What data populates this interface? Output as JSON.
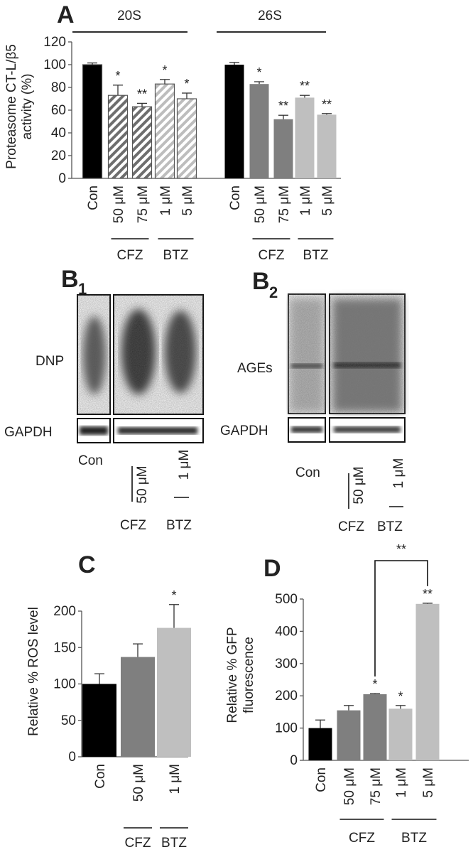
{
  "panels": {
    "a": {
      "letter": "A",
      "group1": "20S",
      "group2": "26S",
      "ylabel_line1": "Proteasome CT-L/β5",
      "ylabel_line2": "activity (%)"
    },
    "b1": {
      "letter": "B",
      "sub": "1",
      "band1": "DNP",
      "band2": "GAPDH",
      "lanes": [
        "Con",
        "50 μM",
        "1 μM"
      ],
      "groups": [
        "CFZ",
        "BTZ"
      ]
    },
    "b2": {
      "letter": "B",
      "sub": "2",
      "band1": "AGEs",
      "band2": "GAPDH",
      "lanes": [
        "Con",
        "50 μM",
        "1 μM"
      ],
      "groups": [
        "CFZ",
        "BTZ"
      ]
    },
    "c": {
      "letter": "C",
      "ylabel": "Relative % ROS level"
    },
    "d": {
      "letter": "D",
      "ylabel_line1": "Relative % GFP",
      "ylabel_line2": "fluorescence",
      "bracket_sig": "**"
    }
  },
  "colors": {
    "con": "#000000",
    "cfz": "#7f7f7f",
    "btz": "#bfbfbf",
    "hatch_cfz": "#6e6e6e",
    "hatch_btz": "#bdbdbd"
  },
  "chart_data": [
    {
      "id": "A-20S",
      "type": "bar",
      "categories": [
        "Con",
        "50 μM",
        "75 μM",
        "1 μM",
        "5 μM"
      ],
      "values": [
        100,
        73,
        63,
        83,
        70
      ],
      "errors": [
        1.5,
        9,
        3,
        4,
        5
      ],
      "significance": [
        "",
        "*",
        "**",
        "*",
        "*"
      ],
      "fills": [
        "solid-black",
        "hatch-dark",
        "hatch-dark",
        "hatch-light",
        "hatch-light"
      ],
      "groups": [
        {
          "label": "CFZ",
          "from": 1,
          "to": 2
        },
        {
          "label": "BTZ",
          "from": 3,
          "to": 4
        }
      ],
      "ylim": [
        0,
        120
      ],
      "yticks": [
        0,
        20,
        40,
        60,
        80,
        100,
        120
      ]
    },
    {
      "id": "A-26S",
      "type": "bar",
      "categories": [
        "Con",
        "50 μM",
        "75 μM",
        "1 μM",
        "5 μM"
      ],
      "values": [
        100,
        83,
        52,
        71,
        56
      ],
      "errors": [
        2,
        2,
        3.5,
        2,
        1
      ],
      "significance": [
        "",
        "*",
        "**",
        "**",
        "**"
      ],
      "fills": [
        "solid-black",
        "solid-dark",
        "solid-dark",
        "solid-light",
        "solid-light"
      ],
      "groups": [
        {
          "label": "CFZ",
          "from": 1,
          "to": 2
        },
        {
          "label": "BTZ",
          "from": 3,
          "to": 4
        }
      ],
      "ylim": [
        0,
        120
      ]
    },
    {
      "id": "C",
      "type": "bar",
      "categories": [
        "Con",
        "50 μM",
        "1 μM"
      ],
      "values": [
        100,
        137,
        177
      ],
      "errors": [
        14,
        18,
        32
      ],
      "significance": [
        "",
        "",
        "*"
      ],
      "fills": [
        "solid-black",
        "solid-dark",
        "solid-light"
      ],
      "groups": [
        {
          "label": "CFZ",
          "from": 1,
          "to": 1
        },
        {
          "label": "BTZ",
          "from": 2,
          "to": 2
        }
      ],
      "ylim": [
        0,
        200
      ],
      "yticks": [
        0,
        50,
        100,
        150,
        200
      ]
    },
    {
      "id": "D",
      "type": "bar",
      "categories": [
        "Con",
        "50 μM",
        "75 μM",
        "1 μM",
        "5 μM"
      ],
      "values": [
        100,
        155,
        205,
        160,
        485
      ],
      "errors": [
        25,
        15,
        2,
        10,
        2
      ],
      "significance": [
        "",
        "",
        "*",
        "*",
        "**"
      ],
      "fills": [
        "solid-black",
        "solid-dark",
        "solid-dark",
        "solid-light",
        "solid-light"
      ],
      "groups": [
        {
          "label": "CFZ",
          "from": 1,
          "to": 2
        },
        {
          "label": "BTZ",
          "from": 3,
          "to": 4
        }
      ],
      "bracket": {
        "from": 2,
        "to": 4
      },
      "ylim": [
        0,
        500
      ],
      "yticks": [
        0,
        100,
        200,
        300,
        400,
        500
      ]
    }
  ]
}
